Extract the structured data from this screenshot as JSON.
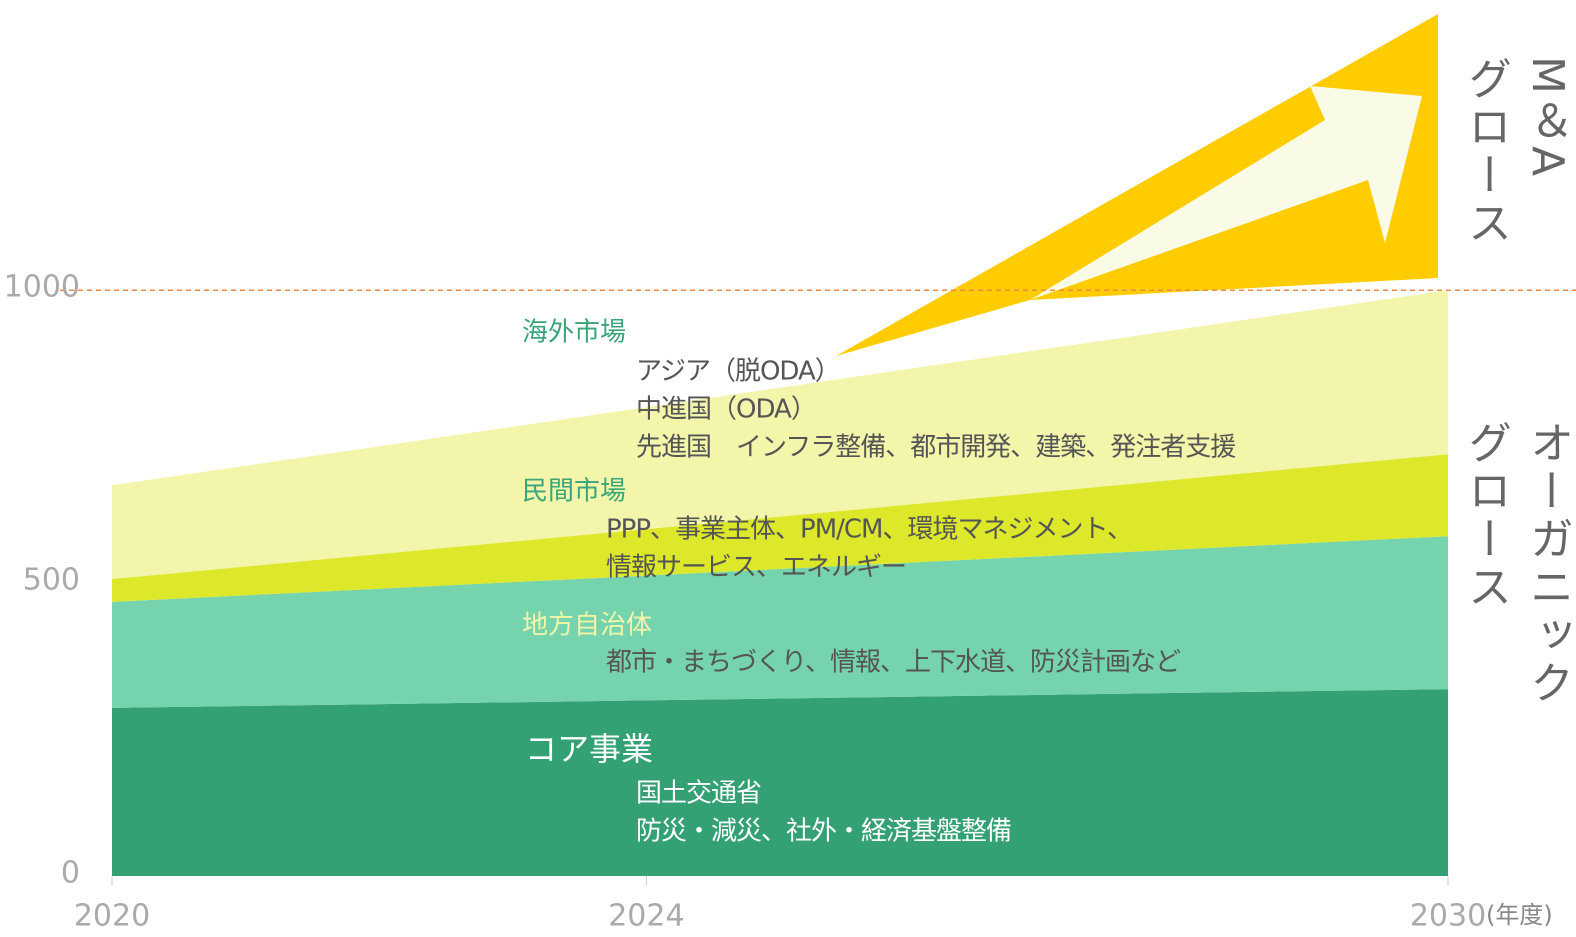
{
  "chart_data": {
    "type": "stacked_area",
    "x": [
      2020,
      2030
    ],
    "xlim": [
      2020,
      2030
    ],
    "xticks": [
      2020,
      2024,
      2030
    ],
    "x_unit_label": "(年度)",
    "ylim": [
      0,
      1480
    ],
    "yticks": [
      0,
      500,
      1000
    ],
    "reference_line": {
      "value": 1000,
      "color": "#f08a40"
    },
    "series": [
      {
        "name": "コア事業",
        "color": "#34a174",
        "values": [
          287,
          319
        ]
      },
      {
        "name": "地方自治体",
        "color": "#75d4ae",
        "values": [
          181,
          261
        ]
      },
      {
        "name": "民間市場",
        "color": "#dce829",
        "values": [
          39,
          140
        ]
      },
      {
        "name": "海外市場",
        "color": "#f2f5aa",
        "values": [
          160,
          280
        ]
      }
    ],
    "area_labels": [
      {
        "title": "コア事業",
        "lines": [
          "国土交通省",
          "防災・減災、社外・経済基盤整備"
        ]
      },
      {
        "title": "地方自治体",
        "lines": [
          "都市・まちづくり、情報、上下水道、防災計画など"
        ]
      },
      {
        "title": "民間市場",
        "lines": [
          "PPP、事業主体、PM/CM、環境マネジメント、",
          "情報サービス、エネルギー"
        ]
      },
      {
        "title": "海外市場",
        "lines": [
          "アジア（脱ODA）",
          "中進国（ODA）",
          "先進国　インフラ整備、都市開発、建築、発注者支援"
        ]
      }
    ],
    "growth_labels": [
      {
        "lines": [
          "M＆A",
          "グロース"
        ]
      },
      {
        "lines": [
          "オーガニック",
          "グロース"
        ]
      }
    ]
  }
}
